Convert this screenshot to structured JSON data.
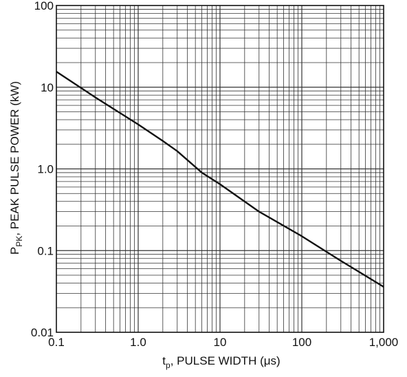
{
  "chart_data": {
    "type": "line",
    "title": "",
    "xlabel": {
      "main": "t",
      "sub": "p",
      "rest": ", PULSE WIDTH (μs)"
    },
    "ylabel": {
      "main": "P",
      "sub": "PK",
      "rest": ", PEAK PULSE POWER (kW)"
    },
    "x_scale": "log",
    "y_scale": "log",
    "xlim": [
      0.1,
      1000
    ],
    "ylim": [
      0.01,
      100
    ],
    "x_ticks": [
      {
        "value": 0.1,
        "label": "0.1"
      },
      {
        "value": 1,
        "label": "1.0"
      },
      {
        "value": 10,
        "label": "10"
      },
      {
        "value": 100,
        "label": "100"
      },
      {
        "value": 1000,
        "label": "1,000"
      }
    ],
    "y_ticks": [
      {
        "value": 0.01,
        "label": "0.01"
      },
      {
        "value": 0.1,
        "label": "0.1"
      },
      {
        "value": 1,
        "label": "1.0"
      },
      {
        "value": 10,
        "label": "10"
      },
      {
        "value": 100,
        "label": "100"
      }
    ],
    "grid": true,
    "series": [
      {
        "x": [
          0.1,
          0.3,
          1,
          2,
          3,
          6,
          10,
          30,
          100,
          300,
          1000
        ],
        "y": [
          15.5,
          7.5,
          3.5,
          2.2,
          1.65,
          0.9,
          0.65,
          0.3,
          0.15,
          0.075,
          0.036
        ]
      }
    ],
    "colors": {
      "line": "#111111",
      "grid": "#333333",
      "axis": "#111111"
    }
  }
}
